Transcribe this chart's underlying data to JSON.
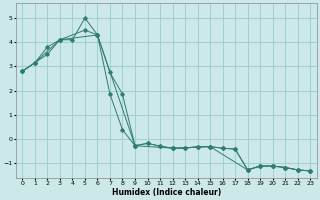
{
  "xlabel": "Humidex (Indice chaleur)",
  "bg_color": "#cce8e8",
  "grid_color": "#99cccc",
  "line_color": "#2e7d6e",
  "xlim": [
    -0.5,
    23.5
  ],
  "ylim": [
    -1.6,
    5.6
  ],
  "yticks": [
    -1,
    0,
    1,
    2,
    3,
    4,
    5
  ],
  "xticks": [
    0,
    1,
    2,
    3,
    4,
    5,
    6,
    7,
    8,
    9,
    10,
    11,
    12,
    13,
    14,
    15,
    16,
    17,
    18,
    19,
    20,
    21,
    22,
    23
  ],
  "line1_x": [
    0,
    1,
    2,
    3,
    5,
    6,
    7,
    8,
    9,
    10,
    11,
    12,
    13,
    14,
    15,
    16,
    17,
    18,
    19,
    20,
    21,
    22,
    23
  ],
  "line1_y": [
    2.8,
    3.15,
    3.8,
    4.1,
    4.5,
    4.3,
    1.85,
    0.38,
    -0.28,
    -0.18,
    -0.3,
    -0.38,
    -0.38,
    -0.32,
    -0.32,
    -0.38,
    -0.42,
    -1.28,
    -1.12,
    -1.12,
    -1.18,
    -1.28,
    -1.32
  ],
  "line2_x": [
    0,
    1,
    3,
    4,
    5,
    6,
    7,
    8,
    9,
    10,
    11,
    12,
    13,
    14,
    15,
    16,
    17,
    18,
    19,
    20,
    21,
    22,
    23
  ],
  "line2_y": [
    2.8,
    3.15,
    4.1,
    4.1,
    5.0,
    4.3,
    2.75,
    1.85,
    -0.28,
    -0.18,
    -0.3,
    -0.38,
    -0.38,
    -0.32,
    -0.32,
    -0.38,
    -0.42,
    -1.28,
    -1.12,
    -1.12,
    -1.18,
    -1.28,
    -1.32
  ],
  "line3_x": [
    0,
    1,
    2,
    3,
    6,
    9,
    12,
    15,
    18,
    19,
    20,
    21,
    22,
    23
  ],
  "line3_y": [
    2.8,
    3.15,
    3.5,
    4.1,
    4.3,
    -0.28,
    -0.38,
    -0.32,
    -1.28,
    -1.12,
    -1.12,
    -1.18,
    -1.28,
    -1.32
  ]
}
